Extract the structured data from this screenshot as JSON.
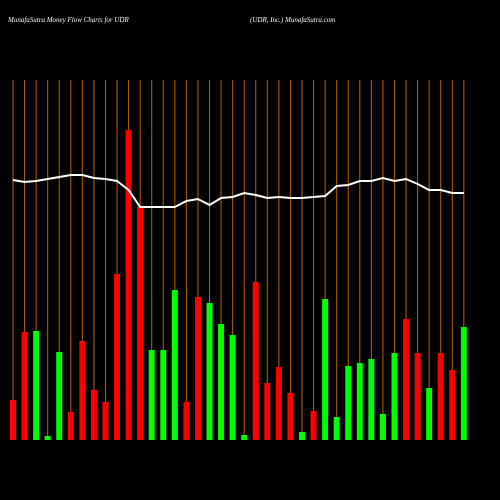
{
  "chart_data": {
    "type": "bar",
    "title": "MunafaSutra  Money Flow  Charts for UDR",
    "subtitle": "(UDR, Inc.) MunafaSutra.com",
    "categories": [
      null,
      null,
      null,
      null,
      null,
      null,
      null,
      null,
      null,
      null,
      null,
      null,
      null,
      null,
      null,
      null,
      null,
      null,
      null,
      null,
      null,
      null,
      null,
      null,
      null,
      null,
      null,
      null,
      null,
      null,
      null,
      null,
      null,
      null,
      null,
      null,
      null,
      null,
      null,
      null
    ],
    "values": [
      40,
      108,
      109,
      4,
      88,
      28,
      99,
      50,
      38,
      166,
      310,
      233,
      90,
      90,
      150,
      38,
      143,
      137,
      116,
      105,
      5,
      158,
      57,
      73,
      47,
      8,
      29,
      141,
      23,
      74,
      77,
      81,
      26,
      87,
      121,
      87,
      52,
      87,
      70,
      113
    ],
    "colors": [
      "#ff0000",
      "#ff0000",
      "#00ff00",
      "#00ff00",
      "#00ff00",
      "#ff0000",
      "#ff0000",
      "#ff0000",
      "#ff0000",
      "#ff0000",
      "#ff0000",
      "#ff0000",
      "#00ff00",
      "#00ff00",
      "#00ff00",
      "#ff0000",
      "#ff0000",
      "#00ff00",
      "#00ff00",
      "#00ff00",
      "#00ff00",
      "#ff0000",
      "#ff0000",
      "#ff0000",
      "#ff0000",
      "#00ff00",
      "#ff0000",
      "#00ff00",
      "#00ff00",
      "#00ff00",
      "#00ff00",
      "#00ff00",
      "#00ff00",
      "#00ff00",
      "#ff0000",
      "#ff0000",
      "#00ff00",
      "#ff0000",
      "#ff0000",
      "#00ff00"
    ],
    "line": {
      "color": "#ffffff",
      "values": [
        260,
        258,
        259,
        261,
        263,
        265,
        265,
        262,
        261,
        259,
        250,
        233,
        233,
        233,
        233,
        239,
        241,
        235,
        242,
        243,
        247,
        245,
        242,
        243,
        242,
        242,
        243,
        244,
        254,
        255,
        259,
        259,
        262,
        259,
        261,
        256,
        250,
        250,
        247,
        247
      ]
    },
    "grid_color": "#b8620a",
    "ylim": [
      0,
      360
    ]
  }
}
